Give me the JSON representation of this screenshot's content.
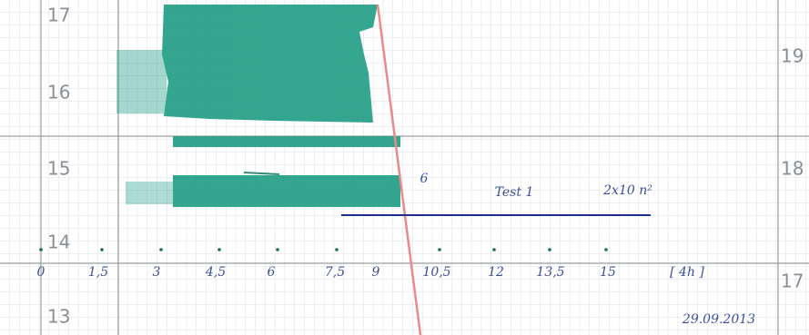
{
  "left_scale": [
    "17",
    "16",
    "15",
    "14",
    "13"
  ],
  "right_scale": [
    "19",
    "18",
    "17"
  ],
  "x_axis": {
    "labels": [
      "0",
      "1,5",
      "3",
      "4,5",
      "6",
      "7,5",
      "9",
      "10,5",
      "12",
      "13,5",
      "15"
    ],
    "unit": "[ 4h ]"
  },
  "annotations": {
    "number": "6",
    "test": "Test 1",
    "scale": "2x10 n²",
    "date": "29.09.2013"
  }
}
